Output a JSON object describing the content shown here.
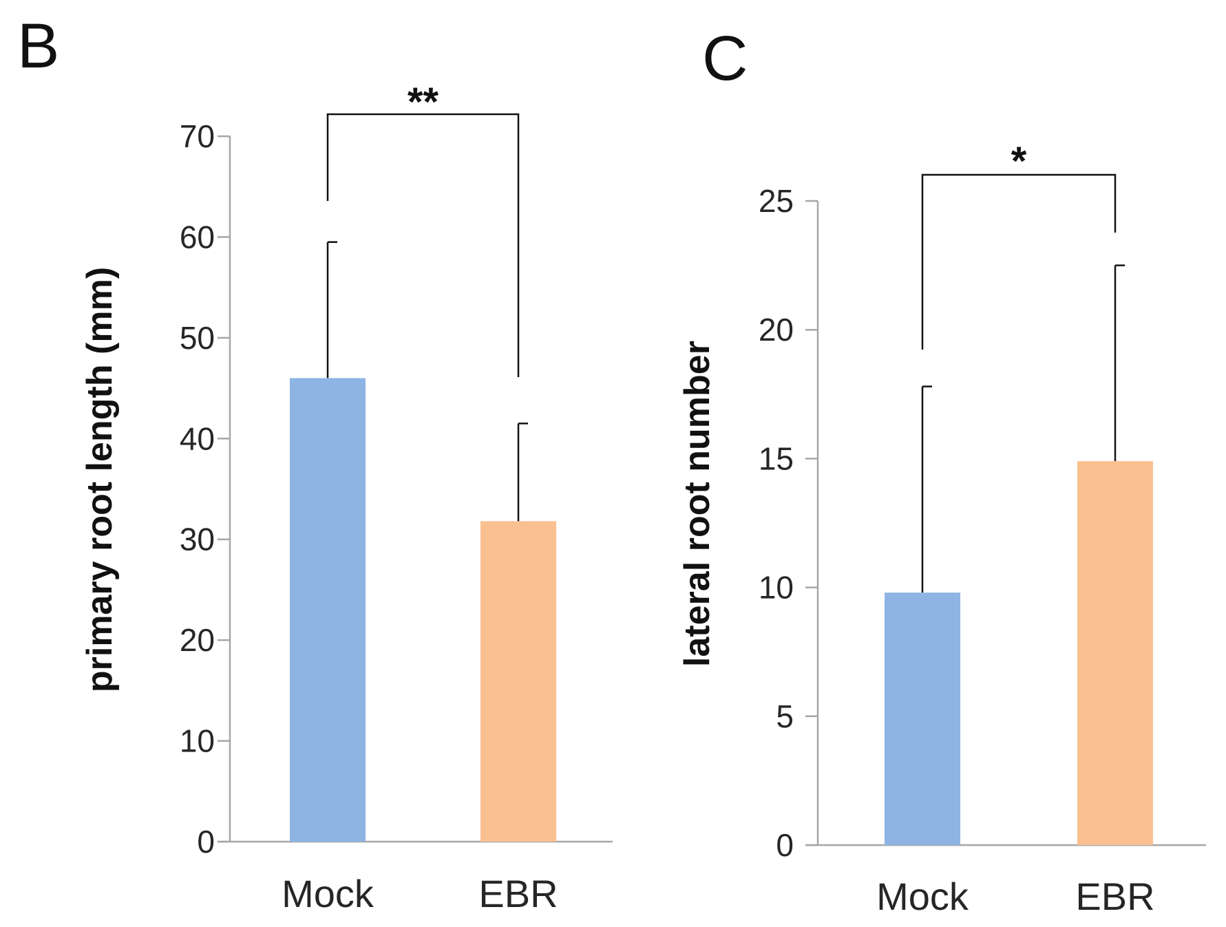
{
  "chart_data": [
    {
      "panel": "B",
      "type": "bar",
      "categories": [
        "Mock",
        "EBR"
      ],
      "values": [
        46,
        31.8
      ],
      "error_upper": [
        59.5,
        41.5
      ],
      "colors": [
        "#8EB4E3",
        "#FAC090"
      ],
      "ylabel": "primary root length (mm)",
      "xlabel": "",
      "ylim": [
        0,
        70
      ],
      "yticks": [
        0,
        10,
        20,
        30,
        40,
        50,
        60,
        70
      ],
      "grid": false,
      "significance": {
        "label": "**",
        "between": [
          "Mock",
          "EBR"
        ]
      }
    },
    {
      "panel": "C",
      "type": "bar",
      "categories": [
        "Mock",
        "EBR"
      ],
      "values": [
        9.8,
        14.9
      ],
      "error_upper": [
        17.8,
        22.5
      ],
      "colors": [
        "#8EB4E3",
        "#FAC090"
      ],
      "ylabel": "lateral root number",
      "xlabel": "",
      "ylim": [
        0,
        25
      ],
      "yticks": [
        0,
        5,
        10,
        15,
        20,
        25
      ],
      "grid": false,
      "significance": {
        "label": "*",
        "between": [
          "Mock",
          "EBR"
        ]
      }
    }
  ]
}
